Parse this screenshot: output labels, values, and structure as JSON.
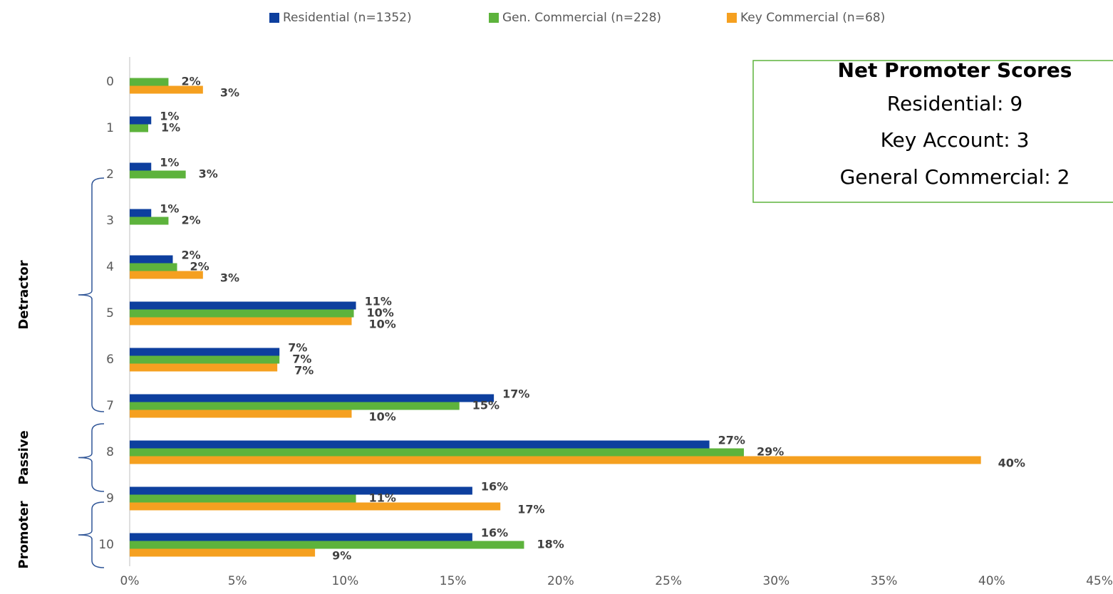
{
  "chart_data": {
    "type": "hbar",
    "categories": [
      "0",
      "1",
      "2",
      "3",
      "4",
      "5",
      "6",
      "7",
      "8",
      "9",
      "10"
    ],
    "series": [
      {
        "name": "Residential (n=1352)",
        "color": "#0d3f9e",
        "values": [
          null,
          1.0,
          1.0,
          1.0,
          2.0,
          10.5,
          6.95,
          16.9,
          26.9,
          15.9,
          15.9
        ],
        "value_labels": [
          null,
          "1%",
          "1%",
          "1%",
          "2%",
          "11%",
          "7%",
          "17%",
          "27%",
          "16%",
          "16%"
        ]
      },
      {
        "name": "Gen. Commercial (n=228)",
        "color": "#5db33c",
        "values": [
          1.8,
          0.86,
          2.6,
          1.8,
          2.2,
          10.4,
          6.95,
          15.3,
          28.5,
          10.5,
          18.3
        ],
        "value_labels": [
          "2%",
          "1%",
          "3%",
          "2%",
          "2%",
          "10%",
          "7%",
          "15%",
          "29%",
          "11%",
          "18%"
        ]
      },
      {
        "name": "Key Commercial (n=68)",
        "color": "#f5a020",
        "values": [
          3.4,
          null,
          null,
          null,
          3.4,
          10.3,
          6.85,
          10.3,
          39.5,
          17.2,
          8.6
        ],
        "value_labels": [
          "3%",
          null,
          null,
          null,
          "3%",
          "10%",
          "7%",
          "10%",
          "40%",
          "17%",
          "9%"
        ]
      }
    ],
    "xlim": [
      0,
      45
    ],
    "xticks": [
      {
        "value": 0,
        "label": "0%"
      },
      {
        "value": 5,
        "label": "5%"
      },
      {
        "value": 10,
        "label": "10%"
      },
      {
        "value": 15,
        "label": "15%"
      },
      {
        "value": 20,
        "label": "20%"
      },
      {
        "value": 25,
        "label": "25%"
      },
      {
        "value": 30,
        "label": "30%"
      },
      {
        "value": 35,
        "label": "35%"
      },
      {
        "value": 40,
        "label": "40%"
      },
      {
        "value": 45,
        "label": "45%"
      }
    ],
    "legend": "top",
    "groups": [
      "Detractor",
      "Passive",
      "Promoter"
    ],
    "annotation": {
      "title": "Net Promoter Scores",
      "lines": [
        "Residential: 9",
        "Key Account: 3",
        "General Commercial: 2"
      ]
    }
  }
}
